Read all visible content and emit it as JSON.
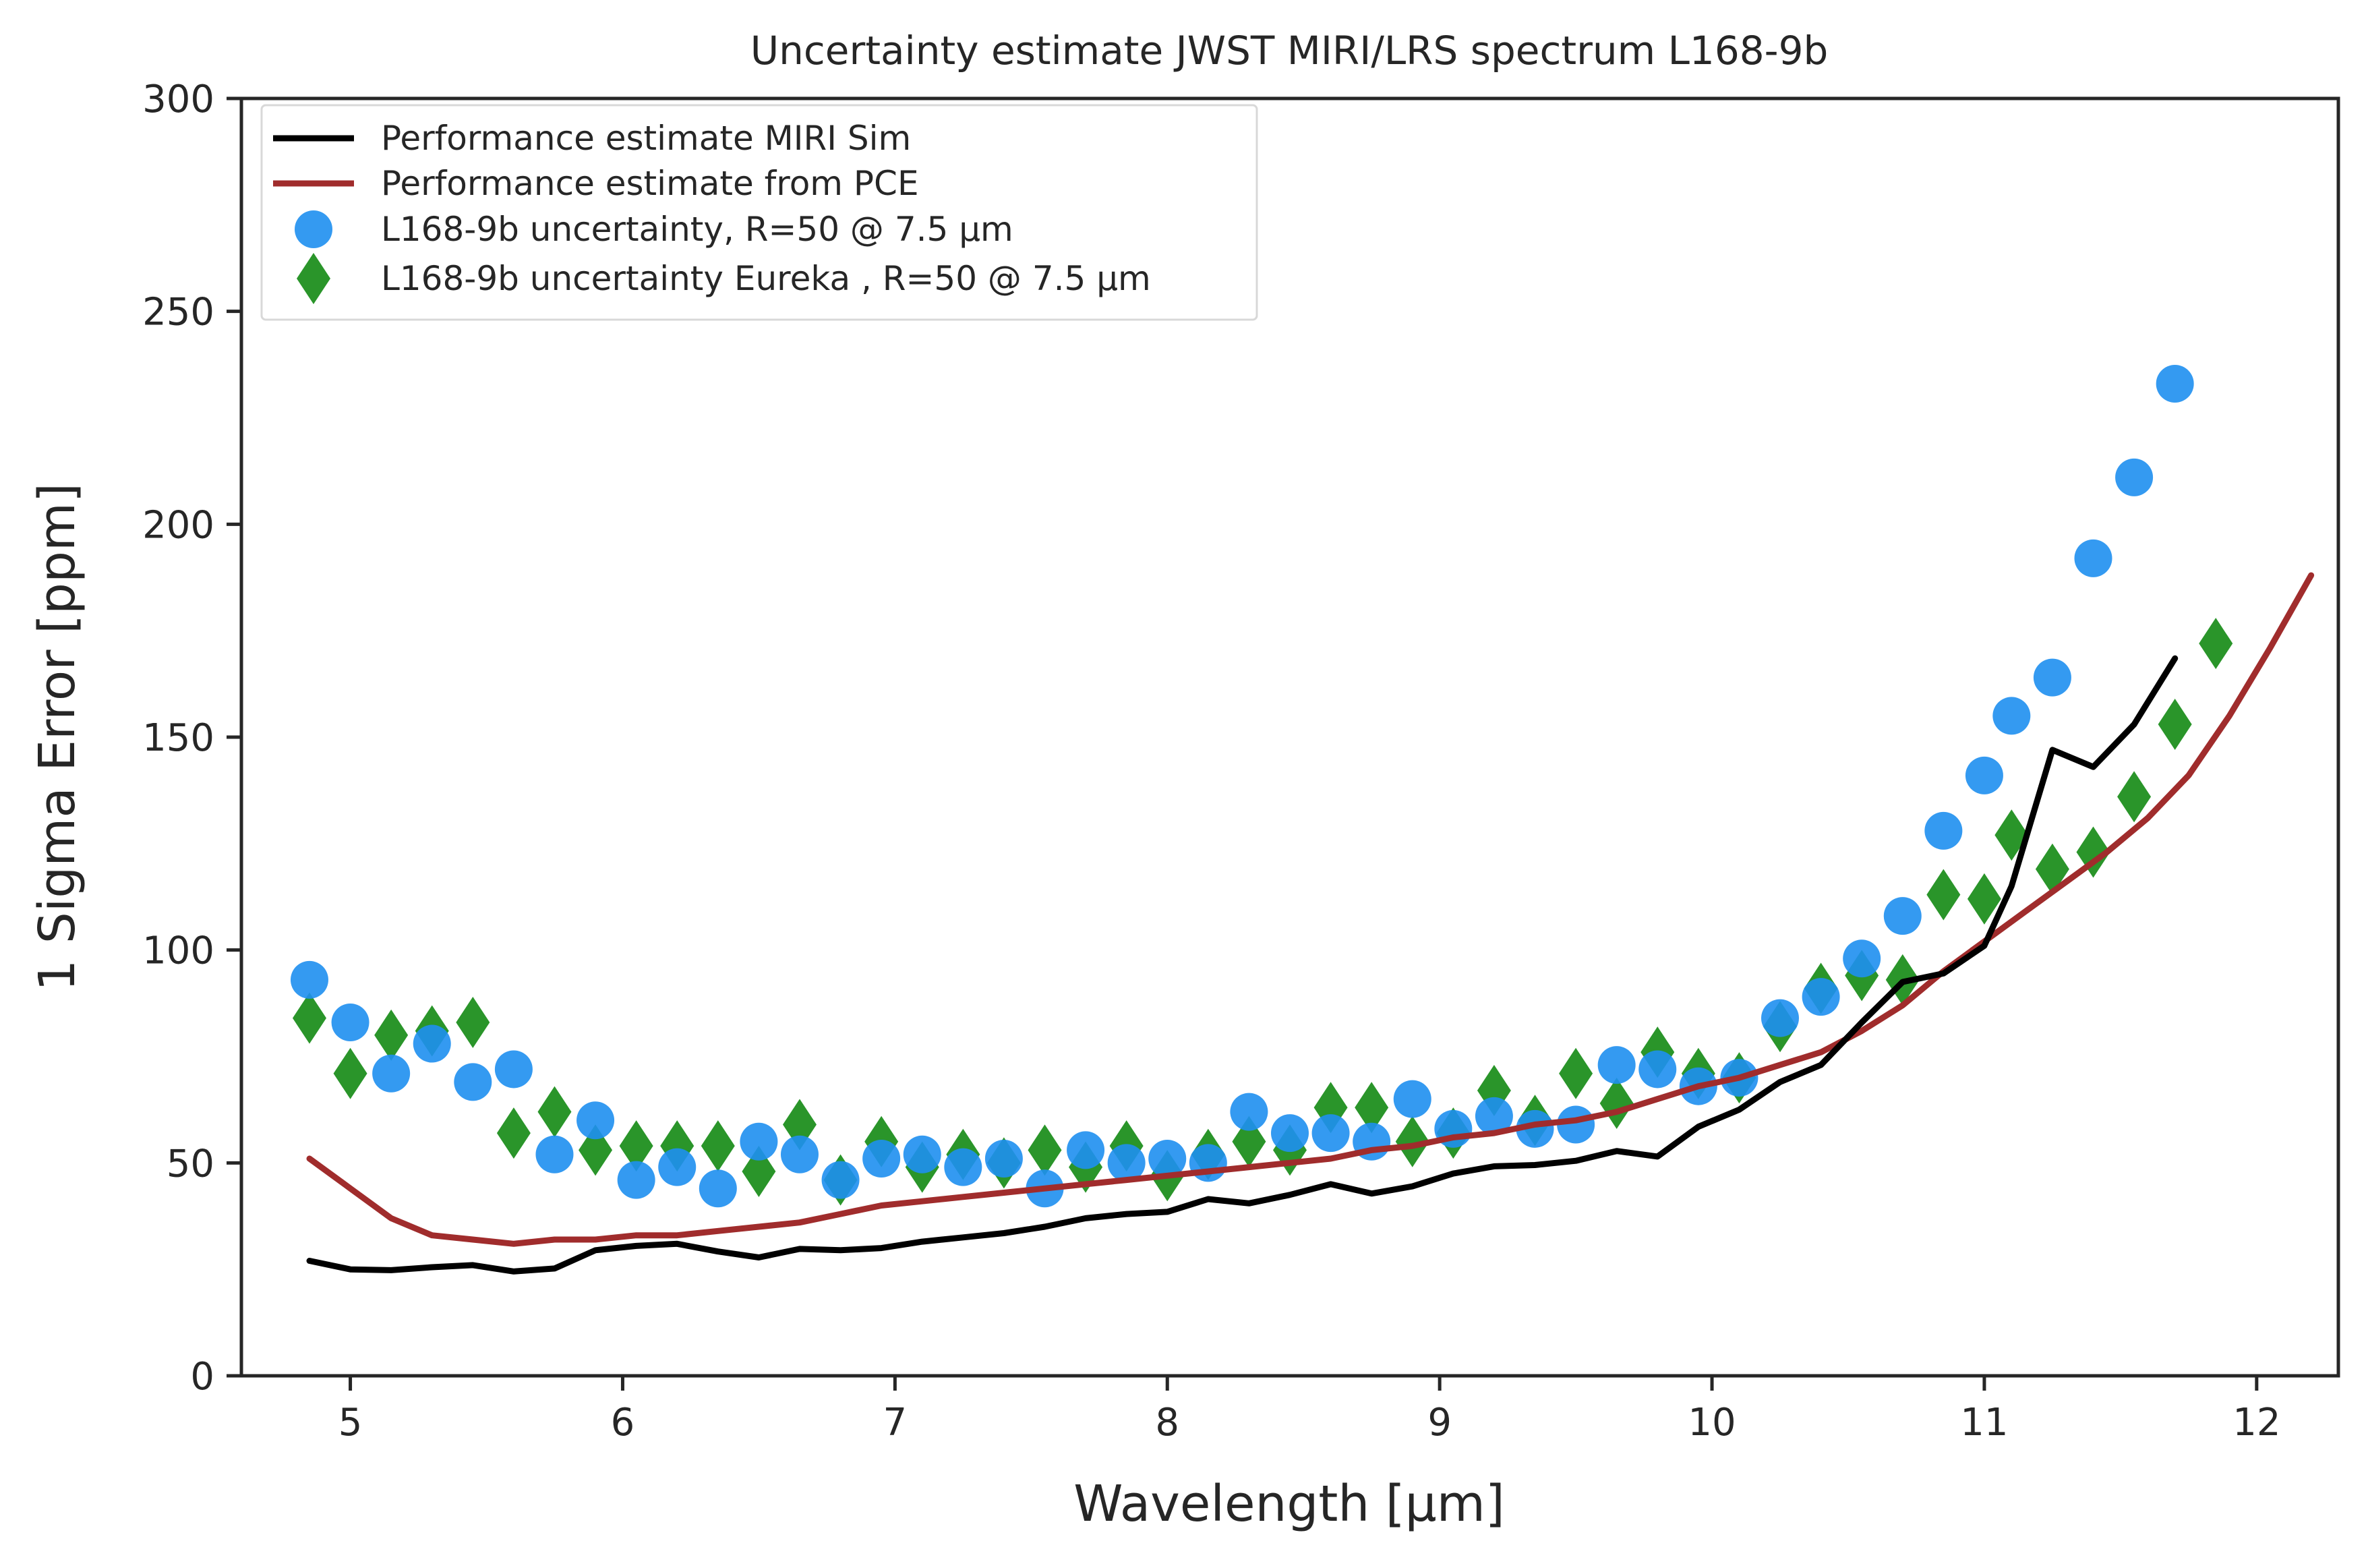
{
  "chart_data": {
    "type": "line+scatter",
    "title": "Uncertainty estimate JWST MIRI/LRS spectrum L168-9b",
    "xlabel": "Wavelength [µm]",
    "ylabel": "1 Sigma Error [ppm]",
    "xlim": [
      4.6,
      12.3
    ],
    "ylim": [
      0,
      300
    ],
    "xticks": [
      5,
      6,
      7,
      8,
      9,
      10,
      11,
      12
    ],
    "yticks": [
      0,
      50,
      100,
      150,
      200,
      250,
      300
    ],
    "grid": false,
    "legend_position": "top-left",
    "series": [
      {
        "name": "Performance estimate MIRI Sim",
        "kind": "line",
        "color": "#000000",
        "x": [
          4.85,
          5.0,
          5.15,
          5.3,
          5.45,
          5.6,
          5.75,
          5.9,
          6.05,
          6.2,
          6.35,
          6.5,
          6.65,
          6.8,
          6.95,
          7.1,
          7.25,
          7.4,
          7.55,
          7.7,
          7.85,
          8.0,
          8.15,
          8.3,
          8.45,
          8.6,
          8.75,
          8.9,
          9.05,
          9.2,
          9.35,
          9.5,
          9.65,
          9.8,
          9.95,
          10.1,
          10.25,
          10.4,
          10.55,
          10.7,
          10.85,
          11.0,
          11.1,
          11.25,
          11.4,
          11.55,
          11.7
        ],
        "y": [
          27,
          25,
          24.8,
          25.5,
          26,
          24.5,
          25.2,
          29.5,
          30.5,
          31,
          29.2,
          27.8,
          29.8,
          29.5,
          30,
          31.5,
          32.5,
          33.5,
          35,
          37,
          38,
          38.5,
          41.5,
          40.5,
          42.5,
          45,
          42.8,
          44.5,
          47.5,
          49.2,
          49.5,
          50.5,
          52.8,
          51.5,
          58.5,
          62.5,
          69,
          73,
          83,
          92.5,
          94.5,
          101,
          115,
          147,
          143,
          153,
          168.5
        ]
      },
      {
        "name": "Performance estimate from PCE",
        "kind": "line",
        "color": "#a02c2c",
        "x": [
          4.85,
          5.0,
          5.15,
          5.3,
          5.45,
          5.6,
          5.75,
          5.9,
          6.05,
          6.2,
          6.35,
          6.5,
          6.65,
          6.8,
          6.95,
          7.1,
          7.25,
          7.4,
          7.55,
          7.7,
          7.85,
          8.0,
          8.15,
          8.3,
          8.45,
          8.6,
          8.75,
          8.9,
          9.05,
          9.2,
          9.35,
          9.5,
          9.65,
          9.8,
          9.95,
          10.1,
          10.25,
          10.4,
          10.55,
          10.7,
          10.85,
          11.0,
          11.15,
          11.3,
          11.45,
          11.6,
          11.75,
          11.9,
          12.05,
          12.2
        ],
        "y": [
          51,
          44,
          37,
          33,
          32,
          31,
          32,
          32,
          33,
          33,
          34,
          35,
          36,
          38,
          40,
          41,
          42,
          43,
          44,
          45,
          46,
          47,
          48,
          49,
          50,
          51,
          53,
          54,
          56,
          57,
          59,
          60,
          62,
          65,
          68,
          70,
          73,
          76,
          81,
          87,
          95,
          102,
          109,
          116,
          123,
          131,
          141,
          155,
          171,
          188
        ]
      },
      {
        "name": "L168-9b uncertainty, R=50 @ 7.5 µm",
        "kind": "scatter",
        "marker": "circle",
        "color": "#1e8ff0",
        "x": [
          4.85,
          5.0,
          5.15,
          5.3,
          5.45,
          5.6,
          5.75,
          5.9,
          6.05,
          6.2,
          6.35,
          6.5,
          6.65,
          6.8,
          6.95,
          7.1,
          7.25,
          7.4,
          7.55,
          7.7,
          7.85,
          8.0,
          8.15,
          8.3,
          8.45,
          8.6,
          8.75,
          8.9,
          9.05,
          9.2,
          9.35,
          9.5,
          9.65,
          9.8,
          9.95,
          10.1,
          10.25,
          10.4,
          10.55,
          10.7,
          10.85,
          11.0,
          11.1,
          11.25,
          11.4,
          11.55,
          11.7
        ],
        "y": [
          93,
          83,
          71,
          78,
          69,
          72,
          52,
          60,
          46,
          49,
          44,
          55,
          52,
          46,
          51,
          52,
          49,
          51,
          44,
          53,
          50,
          51,
          50,
          62,
          57,
          57,
          55,
          65,
          58,
          61,
          58,
          59,
          73,
          72,
          68,
          70,
          84,
          89,
          98,
          108,
          128,
          141,
          155,
          164,
          192,
          211,
          233
        ]
      },
      {
        "name": "L168-9b uncertainty Eureka , R=50 @ 7.5 µm",
        "kind": "scatter",
        "marker": "diamond",
        "color": "#138a13",
        "x": [
          4.85,
          5.0,
          5.15,
          5.3,
          5.45,
          5.6,
          5.75,
          5.9,
          6.05,
          6.2,
          6.35,
          6.5,
          6.65,
          6.8,
          6.95,
          7.1,
          7.25,
          7.4,
          7.55,
          7.7,
          7.85,
          8.0,
          8.15,
          8.3,
          8.45,
          8.6,
          8.75,
          8.9,
          9.05,
          9.2,
          9.35,
          9.5,
          9.65,
          9.8,
          9.95,
          10.1,
          10.25,
          10.4,
          10.55,
          10.7,
          10.85,
          11.0,
          11.1,
          11.25,
          11.4,
          11.55,
          11.7,
          11.85
        ],
        "y": [
          84,
          71,
          80,
          81,
          83,
          57,
          62,
          53,
          54,
          54,
          54,
          48,
          59,
          46,
          55,
          49,
          52,
          50,
          53,
          49,
          54,
          47,
          52,
          55,
          53,
          63,
          63,
          55,
          57,
          67,
          60,
          71,
          64,
          76,
          71,
          70,
          82,
          91,
          94,
          93,
          113,
          112,
          127,
          119,
          123,
          136,
          153,
          172
        ]
      }
    ]
  }
}
